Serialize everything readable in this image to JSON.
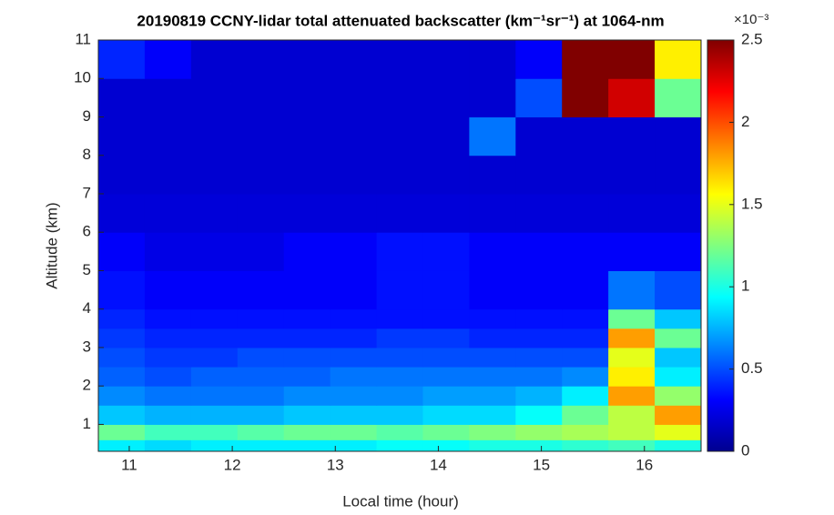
{
  "chart_data": {
    "type": "heatmap",
    "title": "20190819 CCNY-lidar total attenuated backscatter (km⁻¹sr⁻¹) at 1064-nm",
    "xlabel": "Local time (hour)",
    "ylabel": "Altitude (km)",
    "xbins": [
      10.7,
      11.15,
      11.6,
      12.05,
      12.5,
      12.95,
      13.4,
      13.85,
      14.3,
      14.75,
      15.2,
      15.65,
      16.1,
      16.55
    ],
    "ybins": [
      0.3,
      0.6,
      1,
      1.5,
      2,
      2.5,
      3,
      3.5,
      4,
      5,
      6,
      7,
      8,
      9,
      10,
      11
    ],
    "z": [
      [
        0.9,
        0.85,
        0.9,
        0.9,
        0.9,
        0.9,
        0.95,
        0.95,
        1.0,
        1.0,
        1.05,
        1.1,
        1.0
      ],
      [
        1.2,
        1.1,
        1.1,
        1.15,
        1.2,
        1.2,
        1.15,
        1.2,
        1.25,
        1.3,
        1.35,
        1.4,
        1.5
      ],
      [
        0.8,
        0.75,
        0.75,
        0.75,
        0.8,
        0.8,
        0.8,
        0.85,
        0.85,
        0.95,
        1.2,
        1.4,
        1.8
      ],
      [
        0.65,
        0.6,
        0.6,
        0.6,
        0.65,
        0.65,
        0.65,
        0.7,
        0.7,
        0.75,
        0.9,
        1.8,
        1.3
      ],
      [
        0.55,
        0.5,
        0.55,
        0.55,
        0.55,
        0.6,
        0.6,
        0.6,
        0.6,
        0.6,
        0.65,
        1.6,
        0.9
      ],
      [
        0.5,
        0.45,
        0.45,
        0.5,
        0.5,
        0.5,
        0.5,
        0.5,
        0.5,
        0.5,
        0.5,
        1.5,
        0.8
      ],
      [
        0.45,
        0.4,
        0.4,
        0.4,
        0.4,
        0.4,
        0.45,
        0.45,
        0.4,
        0.4,
        0.4,
        1.8,
        1.2
      ],
      [
        0.4,
        0.35,
        0.35,
        0.35,
        0.35,
        0.35,
        0.35,
        0.35,
        0.35,
        0.35,
        0.35,
        1.2,
        0.8
      ],
      [
        0.35,
        0.3,
        0.3,
        0.3,
        0.3,
        0.3,
        0.35,
        0.35,
        0.3,
        0.3,
        0.3,
        0.6,
        0.5
      ],
      [
        0.3,
        0.25,
        0.25,
        0.25,
        0.3,
        0.3,
        0.35,
        0.35,
        0.3,
        0.3,
        0.3,
        0.3,
        0.3
      ],
      [
        0.22,
        0.22,
        0.22,
        0.22,
        0.22,
        0.22,
        0.22,
        0.22,
        0.22,
        0.22,
        0.22,
        0.22,
        0.22
      ],
      [
        0.2,
        0.2,
        0.2,
        0.2,
        0.2,
        0.2,
        0.2,
        0.2,
        0.2,
        0.2,
        0.2,
        0.2,
        0.2
      ],
      [
        0.2,
        0.2,
        0.2,
        0.2,
        0.2,
        0.2,
        0.2,
        0.2,
        0.6,
        0.2,
        0.2,
        0.2,
        0.2
      ],
      [
        0.2,
        0.2,
        0.2,
        0.2,
        0.2,
        0.2,
        0.2,
        0.2,
        0.2,
        0.5,
        2.5,
        2.3,
        1.2
      ],
      [
        0.4,
        0.3,
        0.2,
        0.2,
        0.2,
        0.2,
        0.2,
        0.2,
        0.2,
        0.3,
        2.5,
        2.5,
        1.6
      ]
    ],
    "xlim": [
      10.7,
      16.55
    ],
    "ylim": [
      0.3,
      11
    ],
    "xticks": [
      11,
      12,
      13,
      14,
      15,
      16
    ],
    "yticks": [
      1,
      2,
      3,
      4,
      5,
      6,
      7,
      8,
      9,
      10,
      11
    ],
    "colormap": "jet",
    "clim": [
      0,
      2.5
    ],
    "cticks": [
      0,
      0.5,
      1,
      1.5,
      2,
      2.5
    ],
    "cexponent": "×10⁻³"
  }
}
